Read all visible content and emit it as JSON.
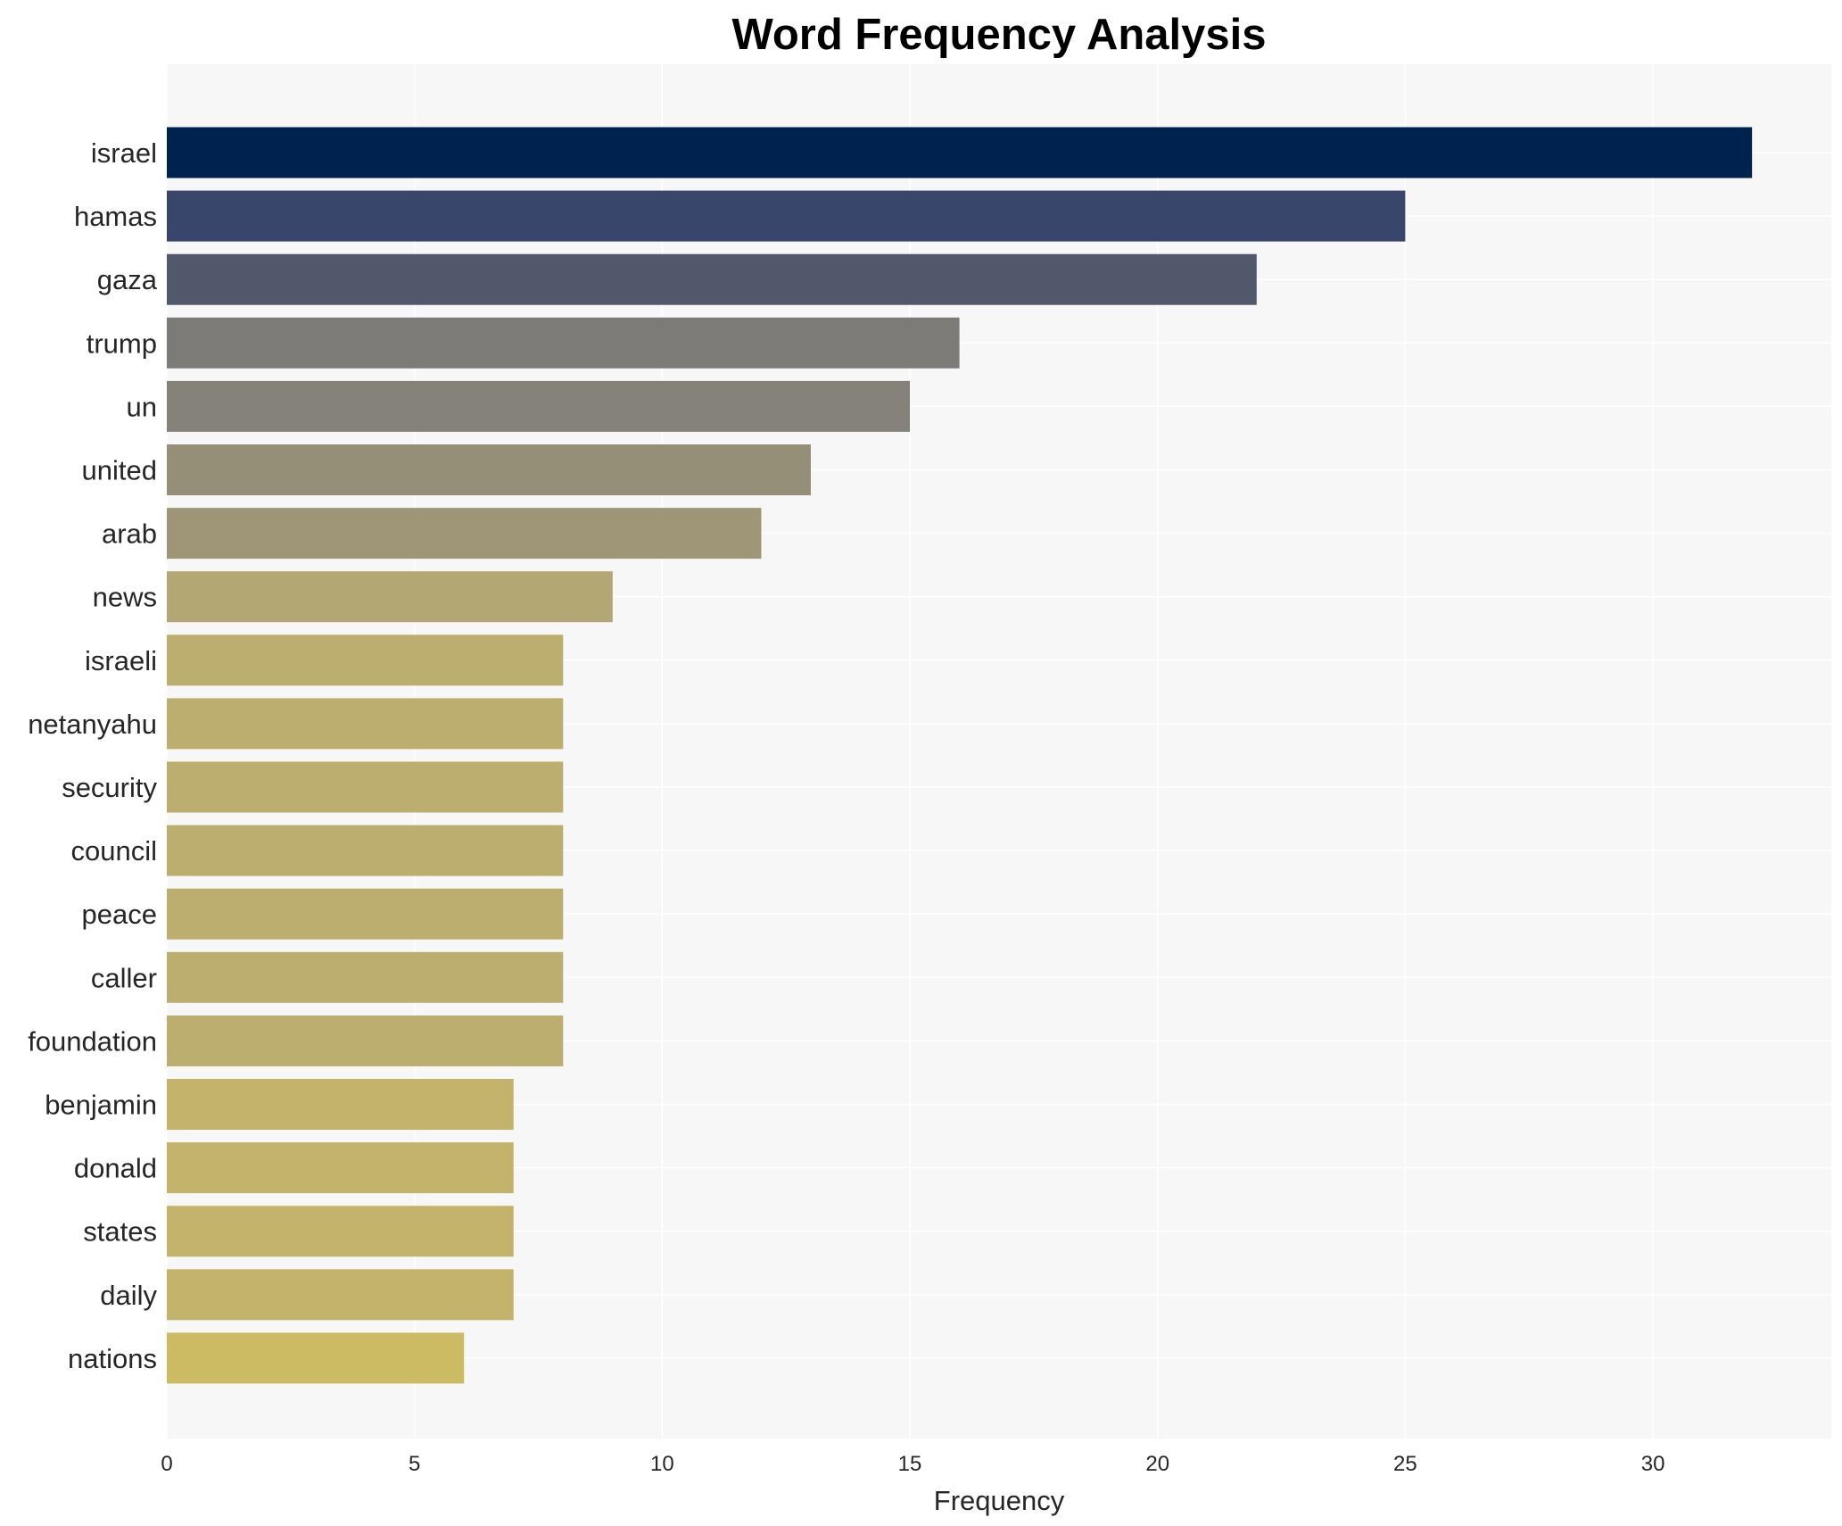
{
  "chart_data": {
    "type": "bar",
    "orientation": "horizontal",
    "title": "Word Frequency Analysis",
    "xlabel": "Frequency",
    "ylabel": "",
    "xlim": [
      0,
      33.6
    ],
    "xticks": [
      0,
      5,
      10,
      15,
      20,
      25,
      30
    ],
    "grid": true,
    "categories": [
      "israel",
      "hamas",
      "gaza",
      "trump",
      "un",
      "united",
      "arab",
      "news",
      "israeli",
      "netanyahu",
      "security",
      "council",
      "peace",
      "caller",
      "foundation",
      "benjamin",
      "donald",
      "states",
      "daily",
      "nations"
    ],
    "values": [
      32,
      25,
      22,
      16,
      15,
      13,
      12,
      9,
      8,
      8,
      8,
      8,
      8,
      8,
      8,
      7,
      7,
      7,
      7,
      6
    ],
    "colors": [
      "#00224e",
      "#38466c",
      "#51586c",
      "#7c7b78",
      "#858379",
      "#958f78",
      "#9e9677",
      "#b3a773",
      "#bcae6f",
      "#bcae6f",
      "#bcae6f",
      "#bcae6f",
      "#bcae6f",
      "#bcae6f",
      "#bcae6f",
      "#c3b36b",
      "#c3b36b",
      "#c3b36b",
      "#c3b36b",
      "#ccbb63"
    ],
    "plot_background": "#f7f7f7"
  }
}
